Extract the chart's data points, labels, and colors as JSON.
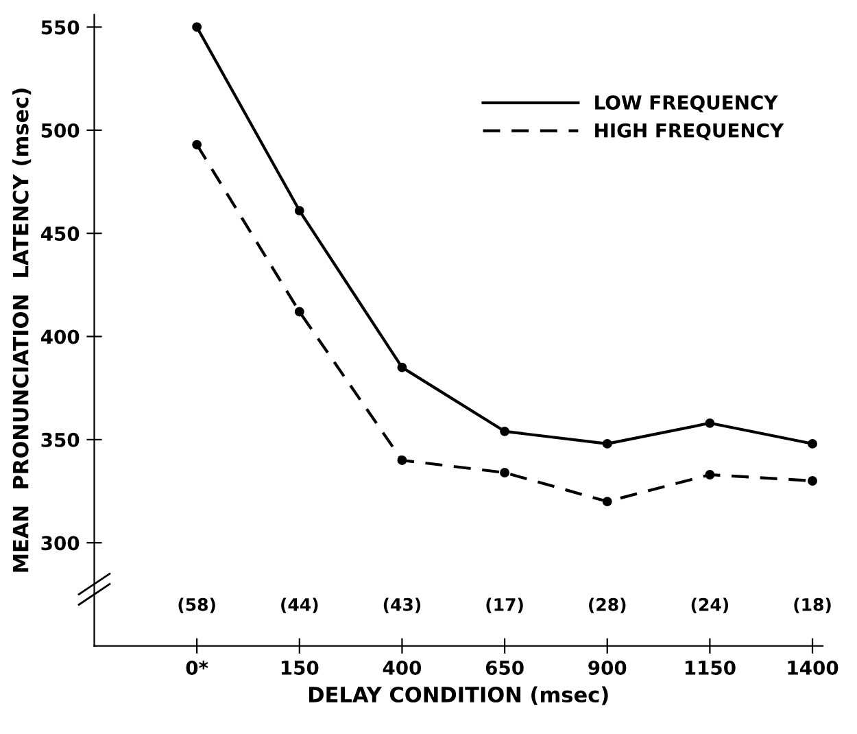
{
  "chart_data": {
    "type": "line",
    "xlabel": "DELAY CONDITION (msec)",
    "ylabel": "MEAN  PRONUNCIATION  LATENCY (msec)",
    "categories": [
      "0*",
      "150",
      "400",
      "650",
      "900",
      "1150",
      "1400"
    ],
    "series": [
      {
        "name": "LOW FREQUENCY",
        "color": "#000000",
        "line_style": "solid",
        "values": [
          550,
          461,
          385,
          354,
          348,
          358,
          348
        ]
      },
      {
        "name": "HIGH FREQUENCY",
        "color": "#000000",
        "line_style": "dashed",
        "values": [
          493,
          412,
          340,
          334,
          320,
          333,
          330
        ]
      }
    ],
    "annotations": [
      "(58)",
      "(44)",
      "(43)",
      "(17)",
      "(28)",
      "(24)",
      "(18)"
    ],
    "ylim": [
      250,
      556
    ],
    "yticks": [
      300,
      350,
      400,
      450,
      500,
      550
    ],
    "marker": "circle",
    "legend": "top right",
    "grid": false
  }
}
